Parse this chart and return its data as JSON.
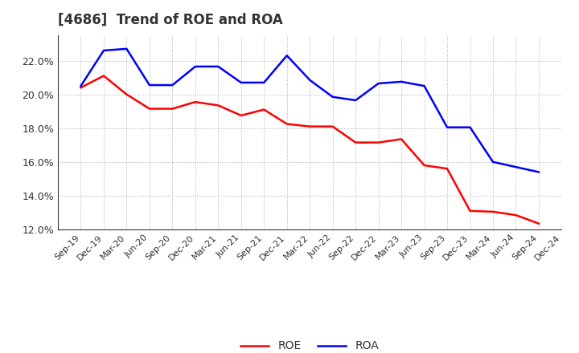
{
  "title": "[4686]  Trend of ROE and ROA",
  "labels": [
    "Sep-19",
    "Dec-19",
    "Mar-20",
    "Jun-20",
    "Sep-20",
    "Dec-20",
    "Mar-21",
    "Jun-21",
    "Sep-21",
    "Dec-21",
    "Mar-22",
    "Jun-22",
    "Sep-22",
    "Dec-22",
    "Mar-23",
    "Jun-23",
    "Sep-23",
    "Dec-23",
    "Mar-24",
    "Jun-24",
    "Sep-24",
    "Dec-24"
  ],
  "ROE": [
    20.4,
    21.1,
    20.0,
    19.15,
    19.15,
    19.55,
    19.35,
    18.75,
    19.1,
    18.25,
    18.1,
    18.1,
    17.15,
    17.15,
    17.35,
    15.8,
    15.6,
    13.1,
    13.05,
    12.85,
    12.35,
    null
  ],
  "ROA": [
    20.5,
    22.6,
    22.7,
    20.55,
    20.55,
    21.65,
    21.65,
    20.7,
    20.7,
    22.3,
    20.85,
    19.85,
    19.65,
    20.65,
    20.75,
    20.5,
    18.05,
    18.05,
    16.0,
    15.7,
    15.4,
    null
  ],
  "roe_color": "#FF0000",
  "roa_color": "#0000FF",
  "ylim": [
    12.0,
    23.5
  ],
  "yticks": [
    12.0,
    14.0,
    16.0,
    18.0,
    20.0,
    22.0
  ],
  "title_color": "#333333",
  "background_color": "#FFFFFF",
  "grid_color": "#999999"
}
